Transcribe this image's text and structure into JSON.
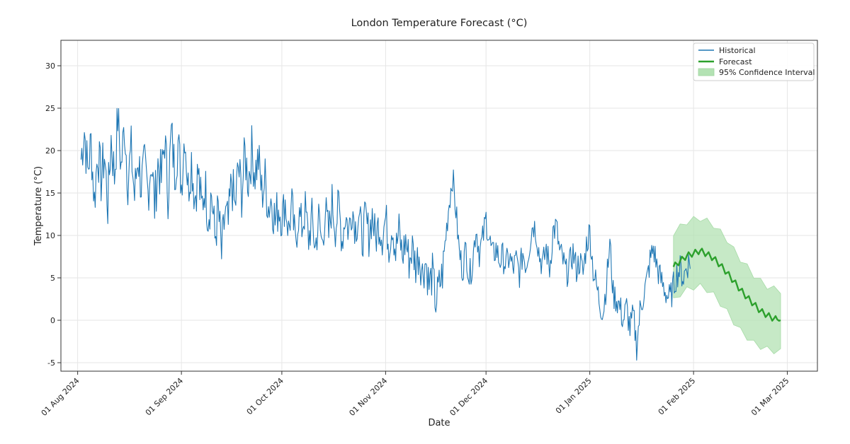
{
  "chart_data": {
    "type": "line",
    "title": "London Temperature Forecast (°C)",
    "xlabel": "Date",
    "ylabel": "Temperature (°C)",
    "x_range_days": [
      -5,
      221
    ],
    "ylim": [
      -6,
      33
    ],
    "grid": true,
    "legend_position": "top-right",
    "x_ticks": [
      {
        "day": 0,
        "label": "01 Aug 2024"
      },
      {
        "day": 31,
        "label": "01 Sep 2024"
      },
      {
        "day": 61,
        "label": "01 Oct 2024"
      },
      {
        "day": 92,
        "label": "01 Nov 2024"
      },
      {
        "day": 122,
        "label": "01 Dec 2024"
      },
      {
        "day": 153,
        "label": "01 Jan 2025"
      },
      {
        "day": 184,
        "label": "01 Feb 2025"
      },
      {
        "day": 212,
        "label": "01 Mar 2025"
      }
    ],
    "y_ticks": [
      -5,
      0,
      5,
      10,
      15,
      20,
      25,
      30
    ],
    "legend": [
      {
        "key": "historical",
        "label": "Historical"
      },
      {
        "key": "forecast",
        "label": "Forecast"
      },
      {
        "key": "ci",
        "label": "95% Confidence Interval"
      }
    ],
    "colors": {
      "historical": "#1f77b4",
      "forecast": "#2ca02c",
      "ci_fill": "#b3e2b3",
      "grid": "#e6e6e6",
      "axis": "#333333"
    },
    "series": [
      {
        "name": "Historical",
        "step_days": 0.25,
        "start_day": 1,
        "values_sampled_daily_note": "approximate readings every 6 hours",
        "anchors": [
          [
            1,
            19.0
          ],
          [
            2,
            22.5
          ],
          [
            3,
            17.5
          ],
          [
            4,
            21.0
          ],
          [
            5,
            14.0
          ],
          [
            6,
            20.0
          ],
          [
            7,
            16.5
          ],
          [
            8,
            19.5
          ],
          [
            9,
            13.5
          ],
          [
            10,
            21.5
          ],
          [
            11,
            17.0
          ],
          [
            12,
            24.0
          ],
          [
            13,
            18.0
          ],
          [
            14,
            23.0
          ],
          [
            15,
            16.5
          ],
          [
            16,
            20.0
          ],
          [
            17,
            14.5
          ],
          [
            18,
            19.5
          ],
          [
            19,
            16.0
          ],
          [
            20,
            18.0
          ],
          [
            21,
            15.0
          ],
          [
            22,
            19.0
          ],
          [
            23,
            13.5
          ],
          [
            24,
            18.5
          ],
          [
            25,
            16.5
          ],
          [
            26,
            21.5
          ],
          [
            27,
            15.0
          ],
          [
            28,
            22.0
          ],
          [
            29,
            17.5
          ],
          [
            30,
            21.0
          ],
          [
            31,
            16.0
          ],
          [
            32,
            22.5
          ],
          [
            33,
            15.5
          ],
          [
            34,
            19.0
          ],
          [
            35,
            14.5
          ],
          [
            36,
            17.5
          ],
          [
            37,
            13.0
          ],
          [
            38,
            16.0
          ],
          [
            39,
            12.5
          ],
          [
            40,
            15.0
          ],
          [
            41,
            9.5
          ],
          [
            42,
            13.0
          ],
          [
            43,
            7.5
          ],
          [
            44,
            12.5
          ],
          [
            45,
            11.0
          ],
          [
            46,
            16.5
          ],
          [
            47,
            13.0
          ],
          [
            48,
            18.0
          ],
          [
            49,
            15.0
          ],
          [
            50,
            19.5
          ],
          [
            51,
            16.5
          ],
          [
            52,
            20.0
          ],
          [
            53,
            17.5
          ],
          [
            54,
            19.0
          ],
          [
            55,
            15.0
          ],
          [
            56,
            16.5
          ],
          [
            57,
            13.5
          ],
          [
            58,
            14.5
          ],
          [
            59,
            11.5
          ],
          [
            60,
            13.5
          ],
          [
            61,
            12.0
          ],
          [
            62,
            14.0
          ],
          [
            63,
            10.5
          ],
          [
            64,
            13.5
          ],
          [
            65,
            9.0
          ],
          [
            66,
            12.5
          ],
          [
            67,
            11.0
          ],
          [
            68,
            13.0
          ],
          [
            69,
            9.5
          ],
          [
            70,
            12.0
          ],
          [
            71,
            8.5
          ],
          [
            72,
            12.0
          ],
          [
            73,
            9.0
          ],
          [
            74,
            13.0
          ],
          [
            75,
            10.0
          ],
          [
            76,
            14.0
          ],
          [
            77,
            11.0
          ],
          [
            78,
            13.5
          ],
          [
            79,
            9.5
          ],
          [
            80,
            12.5
          ],
          [
            81,
            10.5
          ],
          [
            82,
            13.5
          ],
          [
            83,
            11.0
          ],
          [
            84,
            12.5
          ],
          [
            85,
            9.5
          ],
          [
            86,
            12.0
          ],
          [
            87,
            10.0
          ],
          [
            88,
            12.5
          ],
          [
            89,
            9.5
          ],
          [
            90,
            11.5
          ],
          [
            91,
            10.0
          ],
          [
            92,
            12.0
          ],
          [
            93,
            9.0
          ],
          [
            94,
            11.5
          ],
          [
            95,
            8.0
          ],
          [
            96,
            10.5
          ],
          [
            97,
            7.5
          ],
          [
            98,
            9.5
          ],
          [
            99,
            7.0
          ],
          [
            100,
            8.5
          ],
          [
            101,
            6.5
          ],
          [
            102,
            8.0
          ],
          [
            103,
            5.5
          ],
          [
            104,
            7.0
          ],
          [
            105,
            4.0
          ],
          [
            106,
            5.5
          ],
          [
            107,
            2.0
          ],
          [
            108,
            4.0
          ],
          [
            109,
            5.5
          ],
          [
            110,
            10.0
          ],
          [
            111,
            14.0
          ],
          [
            112,
            17.0
          ],
          [
            113,
            13.0
          ],
          [
            114,
            8.0
          ],
          [
            115,
            6.0
          ],
          [
            116,
            8.5
          ],
          [
            117,
            5.0
          ],
          [
            118,
            7.0
          ],
          [
            119,
            11.0
          ],
          [
            120,
            8.0
          ],
          [
            121,
            9.5
          ],
          [
            122,
            12.0
          ],
          [
            123,
            9.5
          ],
          [
            124,
            7.5
          ],
          [
            125,
            8.5
          ],
          [
            126,
            7.0
          ],
          [
            127,
            7.5
          ],
          [
            128,
            6.5
          ],
          [
            129,
            7.5
          ],
          [
            130,
            6.0
          ],
          [
            131,
            7.0
          ],
          [
            132,
            5.5
          ],
          [
            133,
            8.0
          ],
          [
            134,
            6.5
          ],
          [
            135,
            9.0
          ],
          [
            136,
            11.5
          ],
          [
            137,
            10.5
          ],
          [
            138,
            7.5
          ],
          [
            139,
            6.5
          ],
          [
            140,
            8.5
          ],
          [
            141,
            6.0
          ],
          [
            142,
            10.5
          ],
          [
            143,
            11.0
          ],
          [
            144,
            8.0
          ],
          [
            145,
            7.0
          ],
          [
            146,
            5.5
          ],
          [
            147,
            6.5
          ],
          [
            148,
            8.0
          ],
          [
            149,
            6.0
          ],
          [
            150,
            7.0
          ],
          [
            151,
            5.5
          ],
          [
            152,
            9.0
          ],
          [
            153,
            10.5
          ],
          [
            154,
            6.0
          ],
          [
            155,
            4.0
          ],
          [
            156,
            2.0
          ],
          [
            157,
            1.0
          ],
          [
            158,
            4.5
          ],
          [
            159,
            9.0
          ],
          [
            160,
            3.0
          ],
          [
            161,
            2.5
          ],
          [
            162,
            1.5
          ],
          [
            163,
            0.0
          ],
          [
            164,
            1.5
          ],
          [
            165,
            -1.0
          ],
          [
            166,
            0.5
          ],
          [
            167,
            -3.0
          ],
          [
            168,
            1.0
          ],
          [
            169,
            3.0
          ],
          [
            170,
            4.5
          ],
          [
            171,
            7.0
          ],
          [
            172,
            8.5
          ],
          [
            173,
            6.5
          ],
          [
            174,
            5.0
          ],
          [
            175,
            4.0
          ],
          [
            176,
            3.0
          ],
          [
            177,
            2.5
          ],
          [
            178,
            4.0
          ],
          [
            179,
            5.5
          ],
          [
            180,
            6.0
          ],
          [
            181,
            5.0
          ],
          [
            182,
            6.5
          ],
          [
            183,
            7.0
          ]
        ]
      },
      {
        "name": "Forecast",
        "start_day": 178,
        "end_day": 210,
        "points": [
          [
            178,
            6.3
          ],
          [
            180,
            7.0
          ],
          [
            182,
            7.6
          ],
          [
            184,
            7.9
          ],
          [
            186,
            8.2
          ],
          [
            188,
            7.8
          ],
          [
            190,
            7.3
          ],
          [
            192,
            6.5
          ],
          [
            194,
            5.6
          ],
          [
            196,
            4.6
          ],
          [
            198,
            3.6
          ],
          [
            200,
            2.7
          ],
          [
            202,
            1.9
          ],
          [
            204,
            1.1
          ],
          [
            206,
            0.6
          ],
          [
            208,
            0.2
          ],
          [
            210,
            0.0
          ]
        ],
        "ci_lower": [
          [
            178,
            2.3
          ],
          [
            180,
            3.1
          ],
          [
            182,
            3.6
          ],
          [
            184,
            3.9
          ],
          [
            186,
            4.0
          ],
          [
            188,
            3.6
          ],
          [
            190,
            3.0
          ],
          [
            192,
            2.0
          ],
          [
            194,
            1.0
          ],
          [
            196,
            -0.2
          ],
          [
            198,
            -1.2
          ],
          [
            200,
            -2.0
          ],
          [
            202,
            -2.7
          ],
          [
            204,
            -3.1
          ],
          [
            206,
            -3.4
          ],
          [
            208,
            -3.6
          ],
          [
            210,
            -3.7
          ]
        ],
        "ci_upper": [
          [
            178,
            10.3
          ],
          [
            180,
            11.0
          ],
          [
            182,
            11.6
          ],
          [
            184,
            11.9
          ],
          [
            186,
            12.0
          ],
          [
            188,
            11.7
          ],
          [
            190,
            11.2
          ],
          [
            192,
            10.4
          ],
          [
            194,
            9.5
          ],
          [
            196,
            8.3
          ],
          [
            198,
            7.2
          ],
          [
            200,
            6.3
          ],
          [
            202,
            5.3
          ],
          [
            204,
            4.6
          ],
          [
            206,
            4.0
          ],
          [
            208,
            3.7
          ],
          [
            210,
            3.5
          ]
        ]
      }
    ]
  }
}
